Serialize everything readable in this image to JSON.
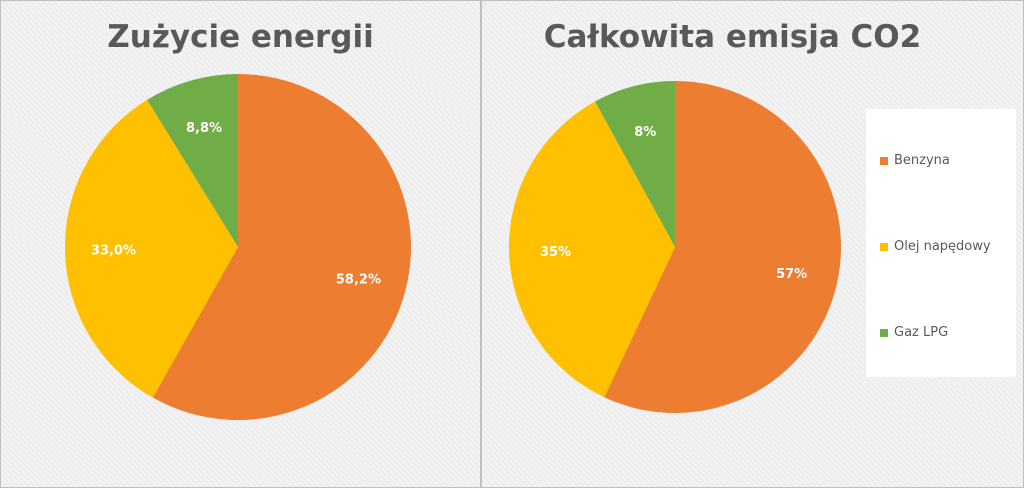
{
  "chart_data": [
    {
      "type": "pie",
      "title": "Zużycie energii",
      "categories": [
        "Benzyna",
        "Olej napędowy",
        "Gaz LPG"
      ],
      "values": [
        58.2,
        33.0,
        8.8
      ],
      "labels": [
        "58,2%",
        "33,0%",
        "8,8%"
      ],
      "colors": [
        "#ed7d31",
        "#ffc000",
        "#70ad47"
      ]
    },
    {
      "type": "pie",
      "title": "Całkowita emisja CO2",
      "categories": [
        "Benzyna",
        "Olej napędowy",
        "Gaz LPG"
      ],
      "values": [
        57,
        35,
        8
      ],
      "labels": [
        "57%",
        "35%",
        "8%"
      ],
      "colors": [
        "#ed7d31",
        "#ffc000",
        "#70ad47"
      ],
      "legend": "right"
    }
  ],
  "legend": {
    "items": [
      {
        "label": "Benzyna",
        "color": "#ed7d31"
      },
      {
        "label": "Olej napędowy",
        "color": "#ffc000"
      },
      {
        "label": "Gaz LPG",
        "color": "#70ad47"
      }
    ]
  }
}
